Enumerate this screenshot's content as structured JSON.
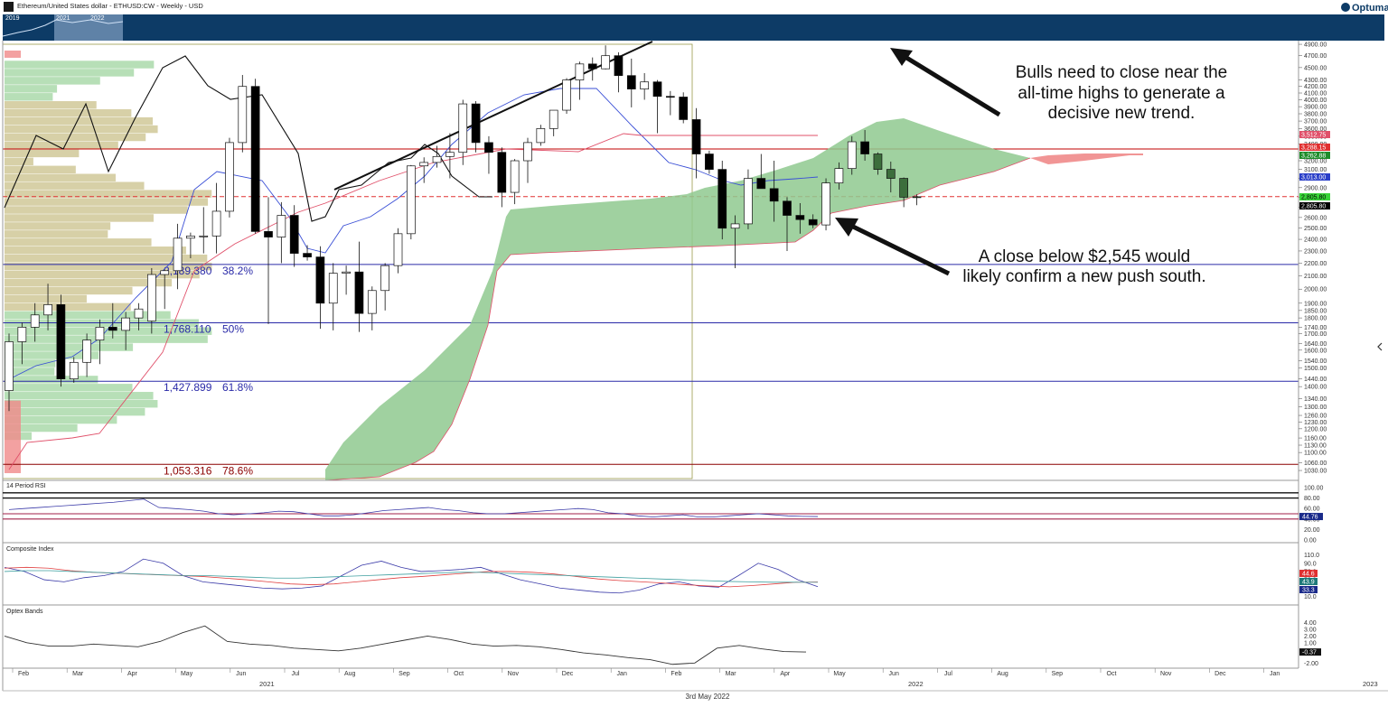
{
  "header": {
    "title": "Ethereum/United States dollar - ETHUSD:CW - Weekly - USD",
    "brand": "Optuma",
    "navigator_labels": [
      "2019",
      "2021",
      "2022"
    ]
  },
  "footer": {
    "date": "3rd May 2022",
    "year_labels": [
      "2021",
      "2022",
      "2023"
    ]
  },
  "annotations": {
    "note_top": [
      "Bulls need to close near the",
      "all-time highs to generate a",
      "decisive new trend."
    ],
    "note_bottom": [
      "A close below $2,545 would",
      "likely confirm a new push south."
    ]
  },
  "panels": {
    "rsi_title": "14 Period RSI",
    "composite_title": "Composite Index",
    "optex_title": "Optex Bands"
  },
  "colors": {
    "up_candle": "#ffffff",
    "down_candle": "#000000",
    "recent_candle": "#3c6e3c",
    "cloud_bull": "#8fc98f",
    "cloud_bear": "#f08a8a",
    "tenkan": "#3a4fd6",
    "kijun": "#e0506a",
    "volume_profile": "#c9c08a",
    "fib_line": "#2a2aa8",
    "header_bar": "#0d3b66"
  },
  "chart_data": [
    {
      "type": "candlestick",
      "title": "Ethereum/United States dollar - ETHUSD:CW - Weekly - USD",
      "x_labels": [
        "Feb",
        "Mar",
        "Apr",
        "May",
        "Jun",
        "Jul",
        "Aug",
        "Sep",
        "Oct",
        "Nov",
        "Dec",
        "Jan",
        "Feb",
        "Mar",
        "Apr",
        "May",
        "Jun",
        "Jul",
        "Aug",
        "Sep",
        "Oct",
        "Nov",
        "Dec",
        "Jan"
      ],
      "y_scale": "log",
      "y_ticks": [
        4900,
        4700,
        4500,
        4300,
        4200,
        4100,
        4000,
        3900,
        3800,
        3700,
        3600,
        3500,
        3400,
        3200,
        3100,
        3000,
        2900,
        2800,
        2700,
        2600,
        2500,
        2400,
        2300,
        2200,
        2100,
        2000,
        1900,
        1850,
        1800,
        1740,
        1700,
        1640,
        1600,
        1540,
        1500,
        1440,
        1400,
        1340,
        1300,
        1260,
        1230,
        1200,
        1160,
        1130,
        1100,
        1060,
        1030
      ],
      "candles": [
        {
          "o": 1380,
          "h": 1700,
          "l": 1280,
          "c": 1650
        },
        {
          "o": 1650,
          "h": 1770,
          "l": 1520,
          "c": 1740
        },
        {
          "o": 1740,
          "h": 1900,
          "l": 1650,
          "c": 1820
        },
        {
          "o": 1820,
          "h": 2040,
          "l": 1720,
          "c": 1890
        },
        {
          "o": 1890,
          "h": 1960,
          "l": 1400,
          "c": 1440
        },
        {
          "o": 1440,
          "h": 1560,
          "l": 1420,
          "c": 1530
        },
        {
          "o": 1530,
          "h": 1700,
          "l": 1450,
          "c": 1660
        },
        {
          "o": 1660,
          "h": 1790,
          "l": 1520,
          "c": 1740
        },
        {
          "o": 1740,
          "h": 1900,
          "l": 1670,
          "c": 1720
        },
        {
          "o": 1720,
          "h": 1840,
          "l": 1600,
          "c": 1800
        },
        {
          "o": 1800,
          "h": 1900,
          "l": 1720,
          "c": 1860
        },
        {
          "o": 1780,
          "h": 2160,
          "l": 1700,
          "c": 2110
        },
        {
          "o": 2110,
          "h": 2150,
          "l": 1860,
          "c": 2140
        },
        {
          "o": 2140,
          "h": 2540,
          "l": 2000,
          "c": 2410
        },
        {
          "o": 2410,
          "h": 2460,
          "l": 2240,
          "c": 2430
        },
        {
          "o": 2430,
          "h": 2700,
          "l": 2280,
          "c": 2430
        },
        {
          "o": 2430,
          "h": 2950,
          "l": 2280,
          "c": 2660
        },
        {
          "o": 2660,
          "h": 3480,
          "l": 2600,
          "c": 3420
        },
        {
          "o": 3420,
          "h": 4380,
          "l": 3300,
          "c": 4200
        },
        {
          "o": 4200,
          "h": 4320,
          "l": 2450,
          "c": 2470
        },
        {
          "o": 2470,
          "h": 2800,
          "l": 1760,
          "c": 2420
        },
        {
          "o": 2420,
          "h": 2750,
          "l": 2200,
          "c": 2620
        },
        {
          "o": 2620,
          "h": 2720,
          "l": 2170,
          "c": 2280
        },
        {
          "o": 2280,
          "h": 2350,
          "l": 2220,
          "c": 2250
        },
        {
          "o": 2250,
          "h": 2340,
          "l": 1730,
          "c": 1900
        },
        {
          "o": 1900,
          "h": 2200,
          "l": 1720,
          "c": 2120
        },
        {
          "o": 2120,
          "h": 2180,
          "l": 1960,
          "c": 2130
        },
        {
          "o": 2130,
          "h": 2380,
          "l": 1710,
          "c": 1830
        },
        {
          "o": 1830,
          "h": 2020,
          "l": 1720,
          "c": 1990
        },
        {
          "o": 1990,
          "h": 2200,
          "l": 1850,
          "c": 2180
        },
        {
          "o": 2180,
          "h": 2500,
          "l": 2120,
          "c": 2450
        },
        {
          "o": 2450,
          "h": 3150,
          "l": 2400,
          "c": 3140
        },
        {
          "o": 3140,
          "h": 3240,
          "l": 2950,
          "c": 3180
        },
        {
          "o": 3180,
          "h": 3380,
          "l": 3120,
          "c": 3250
        },
        {
          "o": 3250,
          "h": 3540,
          "l": 3000,
          "c": 3300
        },
        {
          "o": 3300,
          "h": 4000,
          "l": 3150,
          "c": 3940
        },
        {
          "o": 3940,
          "h": 3980,
          "l": 3300,
          "c": 3420
        },
        {
          "o": 3420,
          "h": 3500,
          "l": 3050,
          "c": 3300
        },
        {
          "o": 3300,
          "h": 3360,
          "l": 2700,
          "c": 2850
        },
        {
          "o": 2850,
          "h": 3220,
          "l": 2730,
          "c": 3200
        },
        {
          "o": 3200,
          "h": 3480,
          "l": 2950,
          "c": 3420
        },
        {
          "o": 3420,
          "h": 3650,
          "l": 3380,
          "c": 3600
        },
        {
          "o": 3600,
          "h": 3850,
          "l": 3500,
          "c": 3850
        },
        {
          "o": 3850,
          "h": 4330,
          "l": 3800,
          "c": 4300
        },
        {
          "o": 4300,
          "h": 4600,
          "l": 4000,
          "c": 4560
        },
        {
          "o": 4560,
          "h": 4670,
          "l": 4290,
          "c": 4480
        },
        {
          "o": 4480,
          "h": 4880,
          "l": 4470,
          "c": 4700
        },
        {
          "o": 4700,
          "h": 4760,
          "l": 4110,
          "c": 4370
        },
        {
          "o": 4370,
          "h": 4650,
          "l": 3890,
          "c": 4160
        },
        {
          "o": 4160,
          "h": 4410,
          "l": 4000,
          "c": 4270
        },
        {
          "o": 4270,
          "h": 4300,
          "l": 3540,
          "c": 4050
        },
        {
          "o": 4050,
          "h": 4130,
          "l": 3780,
          "c": 4040
        },
        {
          "o": 4040,
          "h": 4110,
          "l": 3670,
          "c": 3720
        },
        {
          "o": 3720,
          "h": 3880,
          "l": 3000,
          "c": 3280
        },
        {
          "o": 3280,
          "h": 3320,
          "l": 3050,
          "c": 3100
        },
        {
          "o": 3100,
          "h": 3200,
          "l": 2400,
          "c": 2500
        },
        {
          "o": 2500,
          "h": 2620,
          "l": 2160,
          "c": 2540
        },
        {
          "o": 2540,
          "h": 3100,
          "l": 2490,
          "c": 3000
        },
        {
          "o": 3000,
          "h": 3280,
          "l": 2900,
          "c": 2890
        },
        {
          "o": 2890,
          "h": 3200,
          "l": 2560,
          "c": 2760
        },
        {
          "o": 2760,
          "h": 2800,
          "l": 2300,
          "c": 2620
        },
        {
          "o": 2620,
          "h": 2740,
          "l": 2450,
          "c": 2580
        },
        {
          "o": 2580,
          "h": 2630,
          "l": 2500,
          "c": 2530
        },
        {
          "o": 2530,
          "h": 3000,
          "l": 2480,
          "c": 2950
        },
        {
          "o": 2950,
          "h": 3180,
          "l": 2880,
          "c": 3110
        },
        {
          "o": 3110,
          "h": 3500,
          "l": 3040,
          "c": 3430
        },
        {
          "o": 3430,
          "h": 3580,
          "l": 3200,
          "c": 3280
        },
        {
          "o": 3280,
          "h": 3300,
          "l": 3040,
          "c": 3100
        },
        {
          "o": 3100,
          "h": 3190,
          "l": 2850,
          "c": 3000
        },
        {
          "o": 3000,
          "h": 3010,
          "l": 2700,
          "c": 2800
        },
        {
          "o": 2800,
          "h": 2830,
          "l": 2720,
          "c": 2805
        }
      ],
      "last_price_tags": [
        {
          "label": "3,512.75",
          "color": "#e0506a"
        },
        {
          "label": "3,288.15",
          "color": "#e03030"
        },
        {
          "label": "3,262.88",
          "color": "#1e8c2a"
        },
        {
          "label": "3,013.00",
          "color": "#2a3fc8"
        },
        {
          "label": "2,805.80",
          "color": "#39d439"
        },
        {
          "label": "2,805.80",
          "color": "#000000"
        }
      ],
      "fibonacci": [
        {
          "value": "2,189.380",
          "pct": "38.2%",
          "price": 2189.38,
          "color": "#2a2aa8"
        },
        {
          "value": "1,768.110",
          "pct": "50%",
          "price": 1768.11,
          "color": "#2a2aa8"
        },
        {
          "value": "1,427.899",
          "pct": "61.8%",
          "price": 1427.899,
          "color": "#2a2aa8"
        },
        {
          "value": "1,053.316",
          "pct": "78.6%",
          "price": 1053.316,
          "color": "#8b0000"
        }
      ],
      "horizontal_levels": [
        {
          "price": 3340,
          "color": "#c00000",
          "style": "solid"
        },
        {
          "price": 2805.8,
          "color": "#e03030",
          "style": "dashed"
        }
      ]
    },
    {
      "type": "line",
      "title": "14 Period RSI",
      "y_ticks": [
        100.0,
        80.0,
        60.0,
        40.0,
        20.0,
        0.0
      ],
      "ylim": [
        0,
        100
      ],
      "levels": [
        90,
        80,
        50,
        40
      ],
      "last_value": "44.76",
      "series": [
        {
          "values": [
            58,
            60,
            62,
            64,
            66,
            68,
            70,
            72,
            75,
            78,
            62,
            60,
            58,
            55,
            50,
            48,
            50,
            52,
            55,
            54,
            50,
            46,
            46,
            48,
            52,
            56,
            58,
            60,
            62,
            58,
            56,
            52,
            50,
            50,
            52,
            54,
            56,
            58,
            60,
            58,
            52,
            50,
            46,
            44,
            46,
            48,
            44,
            44,
            46,
            48,
            50,
            48,
            46,
            45,
            44.76
          ]
        }
      ]
    },
    {
      "type": "line",
      "title": "Composite Index",
      "y_ticks": [
        110.0,
        90.0,
        70.0,
        50.0,
        30.0,
        10.0
      ],
      "last_values": [
        "44.6",
        "43.9",
        "33.3"
      ],
      "series": [
        {
          "values": [
            80,
            70,
            50,
            45,
            55,
            60,
            70,
            100,
            90,
            60,
            45,
            40,
            35,
            30,
            28,
            30,
            35,
            60,
            85,
            95,
            80,
            70,
            72,
            75,
            80,
            65,
            50,
            40,
            30,
            25,
            20,
            18,
            25,
            40,
            45,
            35,
            32,
            60,
            90,
            75,
            50,
            33.3
          ]
        },
        {
          "values": [
            78,
            80,
            78,
            72,
            68,
            66,
            64,
            62,
            60,
            58,
            54,
            50,
            45,
            40,
            38,
            40,
            45,
            50,
            55,
            58,
            62,
            66,
            70,
            70,
            68,
            64,
            58,
            52,
            48,
            45,
            42,
            38,
            35,
            33,
            36,
            40,
            44,
            44.6
          ]
        },
        {
          "values": [
            70,
            72,
            72,
            70,
            68,
            66,
            64,
            62,
            60,
            60,
            58,
            56,
            54,
            54,
            56,
            58,
            60,
            62,
            64,
            66,
            68,
            68,
            66,
            64,
            62,
            60,
            58,
            56,
            54,
            52,
            50,
            48,
            46,
            45,
            44,
            44,
            43.9
          ]
        }
      ]
    },
    {
      "type": "line",
      "title": "Optex Bands",
      "y_ticks": [
        4.0,
        3.0,
        2.0,
        1.0,
        -0.37,
        -2.0
      ],
      "last_value": "-0.37",
      "series": [
        {
          "values": [
            2,
            1,
            0.5,
            0.5,
            0.8,
            0.6,
            0.4,
            1.2,
            2.5,
            3.5,
            1.2,
            0.8,
            0.6,
            0.2,
            0,
            -0.2,
            0.2,
            0.8,
            1.4,
            2.0,
            1.5,
            0.8,
            0.5,
            0.6,
            0.4,
            0.0,
            -0.5,
            -0.8,
            -1.2,
            -1.5,
            -2.2,
            -2.0,
            0.2,
            0.6,
            0.1,
            -0.3,
            -0.37
          ]
        }
      ]
    }
  ]
}
